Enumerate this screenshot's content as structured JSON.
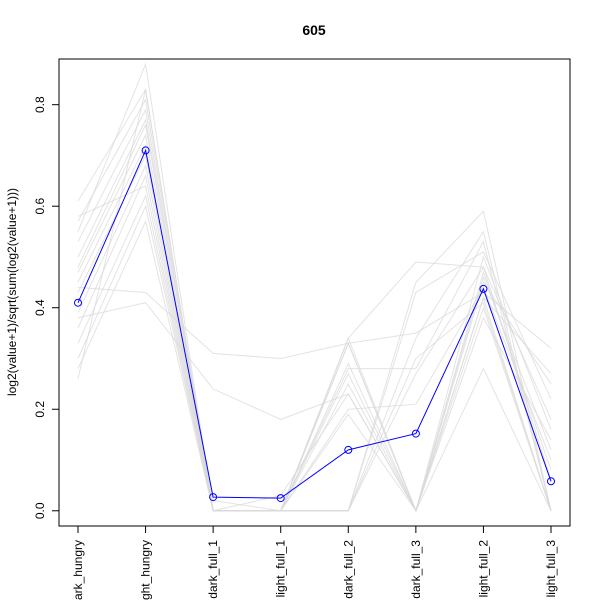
{
  "chart_data": {
    "type": "line",
    "title": "605",
    "xlabel": "",
    "ylabel": "log2(value+1)/sqrt(sum(log2(value+1)))",
    "categories": [
      "dark_hungry",
      "light_hungry",
      "dark_full_1",
      "light_full_1",
      "dark_full_2",
      "dark_full_3",
      "light_full_2",
      "light_full_3"
    ],
    "yticks": [
      0.0,
      0.2,
      0.4,
      0.6,
      0.8
    ],
    "ytick_labels": [
      "0.0",
      "0.2",
      "0.4",
      "0.6",
      "0.8"
    ],
    "ylim": [
      -0.03,
      0.89
    ],
    "grid": false,
    "highlight_series": {
      "color": "#0000ff",
      "values": [
        0.41,
        0.71,
        0.027,
        0.025,
        0.12,
        0.152,
        0.437,
        0.058
      ]
    },
    "background_series": {
      "color": "#d9d9d9",
      "lines": [
        [
          0.61,
          0.83,
          0.0,
          0.0,
          0.33,
          0.0,
          0.42,
          0.0
        ],
        [
          0.57,
          0.81,
          0.0,
          0.0,
          0.0,
          0.43,
          0.51,
          0.22
        ],
        [
          0.53,
          0.79,
          0.0,
          0.0,
          0.28,
          0.28,
          0.53,
          0.0
        ],
        [
          0.5,
          0.77,
          0.02,
          0.0,
          0.25,
          0.0,
          0.46,
          0.12
        ],
        [
          0.47,
          0.74,
          0.0,
          0.0,
          0.0,
          0.27,
          0.48,
          0.18
        ],
        [
          0.45,
          0.72,
          0.0,
          0.03,
          0.23,
          0.0,
          0.4,
          0.0
        ],
        [
          0.43,
          0.7,
          0.0,
          0.0,
          0.2,
          0.21,
          0.44,
          0.1
        ],
        [
          0.39,
          0.68,
          0.0,
          0.0,
          0.33,
          0.0,
          0.38,
          0.14
        ],
        [
          0.36,
          0.66,
          0.0,
          0.0,
          0.0,
          0.34,
          0.55,
          0.0
        ],
        [
          0.33,
          0.62,
          0.0,
          0.0,
          0.29,
          0.0,
          0.47,
          0.08
        ],
        [
          0.3,
          0.6,
          0.0,
          0.0,
          0.0,
          0.3,
          0.41,
          0.0
        ],
        [
          0.44,
          0.43,
          0.31,
          0.3,
          0.33,
          0.35,
          0.43,
          0.32
        ],
        [
          0.38,
          0.41,
          0.24,
          0.18,
          0.23,
          0.0,
          0.42,
          0.27
        ],
        [
          0.28,
          0.57,
          0.0,
          0.0,
          0.34,
          0.0,
          0.5,
          0.16
        ],
        [
          0.26,
          0.83,
          0.0,
          0.0,
          0.0,
          0.45,
          0.59,
          0.0
        ],
        [
          0.55,
          0.88,
          0.0,
          0.0,
          0.19,
          0.0,
          0.45,
          0.25
        ],
        [
          0.58,
          0.64,
          0.0,
          0.0,
          0.27,
          0.0,
          0.28,
          0.0
        ],
        [
          0.48,
          0.76,
          0.0,
          0.0,
          0.34,
          0.49,
          0.48,
          0.06
        ]
      ]
    }
  }
}
